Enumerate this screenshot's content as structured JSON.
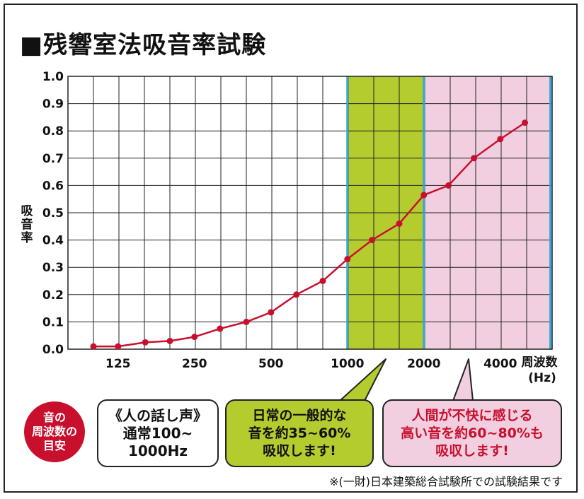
{
  "title": "■残響室法吸音率試験",
  "chart_data": {
    "type": "line",
    "title": "■残響室法吸音率試験",
    "ylabel": "吸音率",
    "xlabel": "周波数",
    "xlabel_unit": "(Hz)",
    "ylim": [
      0,
      1.0
    ],
    "yticks": [
      "0.0",
      "0.1",
      "0.2",
      "0.3",
      "0.4",
      "0.5",
      "0.6",
      "0.7",
      "0.8",
      "0.9",
      "1.0"
    ],
    "x_scale": "log (1/3 octave bands)",
    "xtick_labels": [
      "125",
      "250",
      "500",
      "1000",
      "2000",
      "4000"
    ],
    "grid": true,
    "x": [
      100,
      125,
      160,
      200,
      250,
      315,
      400,
      500,
      630,
      800,
      1000,
      1250,
      1600,
      2000,
      2500,
      3150,
      4000,
      5000
    ],
    "series": [
      {
        "color": "#c8102e",
        "values": [
          0.01,
          0.01,
          0.025,
          0.03,
          0.045,
          0.075,
          0.1,
          0.135,
          0.2,
          0.25,
          0.33,
          0.4,
          0.46,
          0.565,
          0.6,
          0.7,
          0.77,
          0.83
        ]
      }
    ],
    "bands": [
      {
        "from": 1000,
        "to": 2000,
        "color": "#b5cc2e",
        "border": "#35a8d8"
      },
      {
        "from": 2000,
        "to": 6300,
        "color": "#f2cfe0",
        "border": "#35a8d8"
      }
    ]
  },
  "legend_guide": "音の\n周波数の\n目安",
  "callouts": {
    "speech": "《人の話し声》\n通常100~\n1000Hz",
    "daily": "日常の一般的な\n音を約35~60%\n吸収します!",
    "unpleasant": "人間が不快に感じる\n高い音を約60~80%も\n吸収します!"
  },
  "footnote": "※(一財)日本建築総合試験所での試験結果です"
}
